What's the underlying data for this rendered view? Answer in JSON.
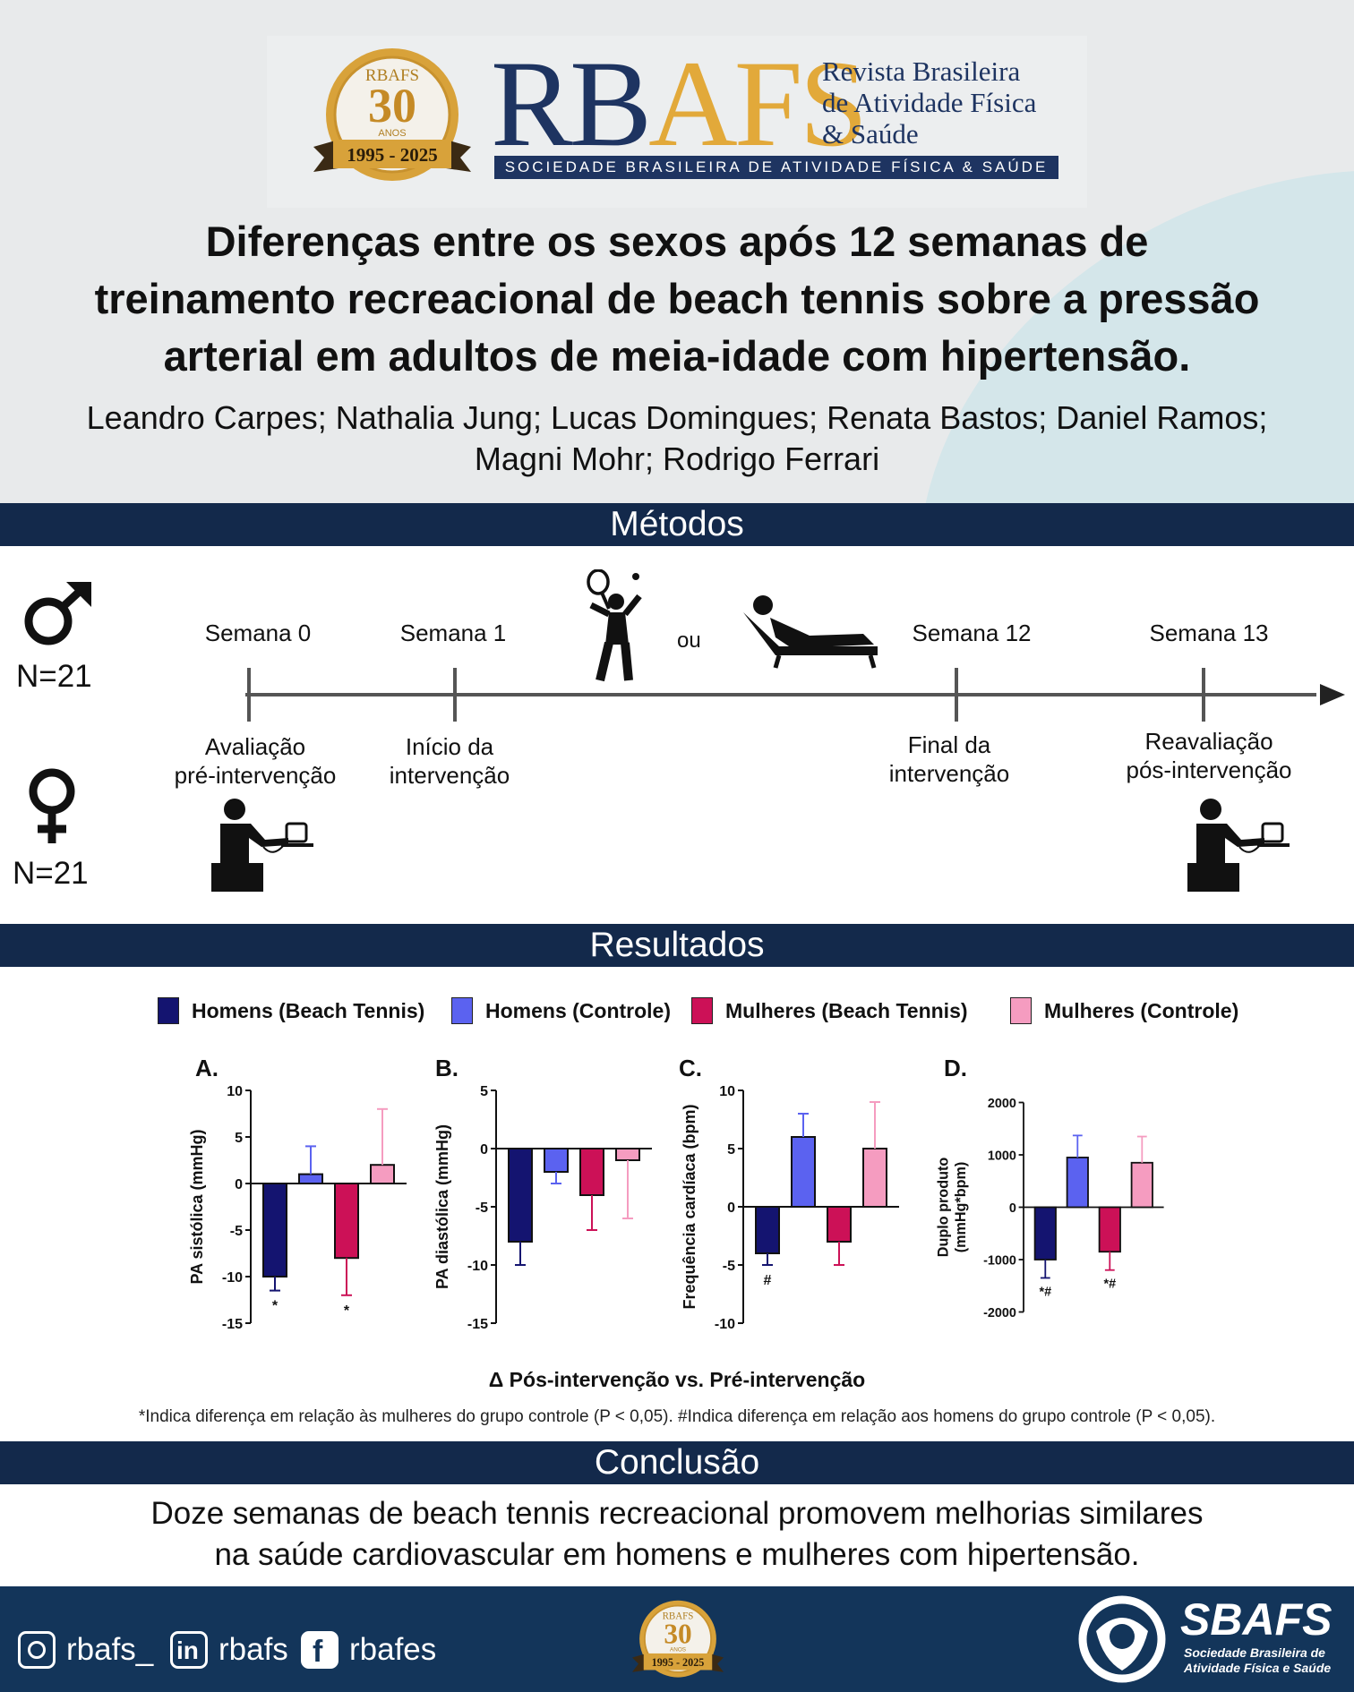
{
  "header": {
    "badge_top": "RBAFS",
    "badge_number": "30",
    "badge_sub": "ANOS",
    "badge_years": "1995 - 2025",
    "brand_part1": "RB",
    "brand_part2": "AFS",
    "brand_line1": "Revista Brasileira",
    "brand_line2": "de Atividade Física",
    "brand_line3": "& Saúde",
    "brand_strip": "SOCIEDADE BRASILEIRA DE ATIVIDADE FÍSICA & SAÚDE",
    "title_line1": "Diferenças entre os sexos após 12 semanas de",
    "title_line2": "treinamento recreacional de beach tennis sobre a pressão",
    "title_line3": "arterial em adultos de meia-idade com hipertensão.",
    "authors_line1": "Leandro Carpes; Nathalia Jung; Lucas Domingues; Renata Bastos; Daniel Ramos;",
    "authors_line2": "Magni Mohr; Rodrigo Ferrari"
  },
  "methods": {
    "heading": "Métodos",
    "male_n": "N=21",
    "female_n": "N=21",
    "or_label": "ou",
    "weeks": [
      {
        "label": "Semana 0",
        "desc1": "Avaliação",
        "desc2": "pré-intervenção"
      },
      {
        "label": "Semana 1",
        "desc1": "Início da",
        "desc2": "intervenção"
      },
      {
        "label": "Semana 12",
        "desc1": "Final da",
        "desc2": "intervenção"
      },
      {
        "label": "Semana 13",
        "desc1": "Reavaliação",
        "desc2": "pós-intervenção"
      }
    ]
  },
  "results": {
    "heading": "Resultados",
    "legend": [
      {
        "label": "Homens (Beach Tennis)",
        "color": "#141470"
      },
      {
        "label": "Homens (Controle)",
        "color": "#5b62f0"
      },
      {
        "label": "Mulheres (Beach Tennis)",
        "color": "#cc1157"
      },
      {
        "label": "Mulheres (Controle)",
        "color": "#f59cc0"
      }
    ],
    "delta_label": "Δ  Pós-intervenção vs. Pré-intervenção",
    "footnote": "*Indica diferença em relação às mulheres do grupo controle (P < 0,05). #Indica diferença em relação aos homens do grupo controle (P < 0,05)."
  },
  "chart_data": [
    {
      "panel": "A.",
      "type": "bar",
      "ylabel": "PA sistólica (mmHg)",
      "ylim": [
        -15,
        10
      ],
      "ticks": [
        10,
        5,
        0,
        -5,
        -10,
        -15
      ],
      "tick_labels": [
        "10",
        "5",
        "0",
        "-5",
        "-10",
        "-15"
      ],
      "values": [
        -10,
        1,
        -8,
        2
      ],
      "errors": [
        1.5,
        3,
        4,
        6
      ],
      "annotations": [
        "*",
        "",
        "*",
        ""
      ]
    },
    {
      "panel": "B.",
      "type": "bar",
      "ylabel": "PA diastólica (mmHg)",
      "ylim": [
        -15,
        5
      ],
      "ticks": [
        5,
        0,
        -5,
        -10,
        -15
      ],
      "tick_labels": [
        "5",
        "0",
        "-5",
        "-10",
        "-15"
      ],
      "values": [
        -8,
        -2,
        -4,
        -1
      ],
      "errors": [
        2,
        1,
        3,
        5
      ],
      "annotations": [
        "",
        "",
        "",
        ""
      ]
    },
    {
      "panel": "C.",
      "type": "bar",
      "ylabel": "Frequência cardíaca (bpm)",
      "ylim": [
        -10,
        10
      ],
      "ticks": [
        10,
        5,
        0,
        -5,
        -10
      ],
      "tick_labels": [
        "10",
        "5",
        "0",
        "-5",
        "-10"
      ],
      "values": [
        -4,
        6,
        -3,
        5
      ],
      "errors": [
        1,
        2,
        2,
        4
      ],
      "annotations": [
        "#",
        "",
        "",
        ""
      ]
    },
    {
      "panel": "D.",
      "type": "bar",
      "ylabel_line1": "Duplo produto",
      "ylabel_line2": "(mmHg*bpm)",
      "ylim": [
        -2000,
        2000
      ],
      "ticks": [
        2000,
        1000,
        0,
        -1000,
        -2000
      ],
      "tick_labels": [
        "2000",
        "1000",
        "0",
        "-1000",
        "-2000"
      ],
      "values": [
        -1000,
        950,
        -850,
        850
      ],
      "errors": [
        350,
        420,
        350,
        500
      ],
      "annotations": [
        "*#",
        "",
        "*#",
        ""
      ]
    }
  ],
  "conclusion": {
    "heading": "Conclusão",
    "line1": "Doze semanas de beach tennis recreacional promovem melhorias similares",
    "line2": "na saúde cardiovascular em homens e mulheres com hipertensão."
  },
  "footer": {
    "instagram": "rbafs_",
    "linkedin": "rbafs",
    "facebook": "rbafes",
    "badge_top": "RBAFS",
    "badge_number": "30",
    "badge_sub": "ANOS",
    "badge_years": "1995 - 2025",
    "sbafs_title": "SBAFS",
    "sbafs_sub1": "Sociedade Brasileira de",
    "sbafs_sub2": "Atividade Física e Saúde"
  }
}
